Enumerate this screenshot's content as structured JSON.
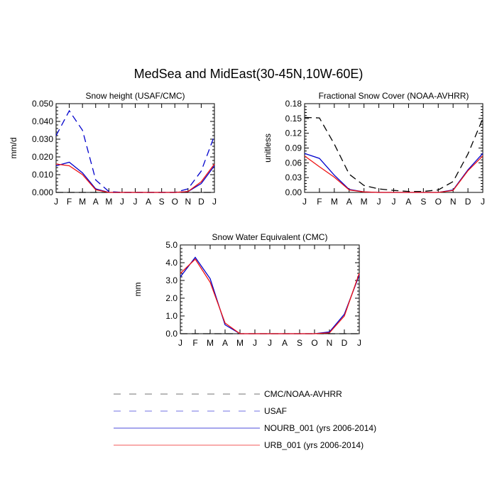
{
  "figure": {
    "title": "MedSea and MidEast(30-45N,10W-60E)"
  },
  "colors": {
    "cmc_noaa": "#000000",
    "usaf": "#0000cc",
    "nourb": "#0000cc",
    "urb": "#ee1111"
  },
  "chart_data": [
    {
      "type": "line",
      "title": "Snow height (USAF/CMC)",
      "ylabel": "mm/d",
      "xlabel": "",
      "categories": [
        "J",
        "F",
        "M",
        "A",
        "M",
        "J",
        "J",
        "A",
        "S",
        "O",
        "N",
        "D",
        "J"
      ],
      "ylim": [
        0,
        0.05
      ],
      "yticks": [
        0,
        0.01,
        0.02,
        0.03,
        0.04,
        0.05
      ],
      "ytick_labels": [
        "0.000",
        "0.010",
        "0.020",
        "0.030",
        "0.040",
        "0.050"
      ],
      "grid": false,
      "series": [
        {
          "name": "CMC/NOAA-AVHRR",
          "style": "dashed",
          "color_key": "cmc_noaa",
          "values": [
            0,
            0,
            0,
            0,
            0,
            0,
            0,
            0,
            0,
            0,
            0,
            0,
            0
          ]
        },
        {
          "name": "USAF",
          "style": "dashed",
          "color_key": "usaf",
          "values": [
            0.032,
            0.046,
            0.035,
            0.007,
            0.0005,
            0,
            0,
            0,
            0,
            0,
            0.002,
            0.012,
            0.032
          ]
        },
        {
          "name": "NOURB_001 (yrs 2006-2014)",
          "style": "solid",
          "color_key": "nourb",
          "values": [
            0.015,
            0.017,
            0.011,
            0.002,
            0,
            0,
            0,
            0,
            0,
            0,
            0.0005,
            0.005,
            0.015
          ]
        },
        {
          "name": "URB_001 (yrs 2006-2014)",
          "style": "solid",
          "color_key": "urb",
          "values": [
            0.016,
            0.015,
            0.01,
            0.0015,
            0,
            0,
            0,
            0,
            0,
            0,
            0.0005,
            0.006,
            0.016
          ]
        }
      ]
    },
    {
      "type": "line",
      "title": "Fractional Snow Cover (NOAA-AVHRR)",
      "ylabel": "unitless",
      "xlabel": "",
      "categories": [
        "J",
        "F",
        "M",
        "A",
        "M",
        "J",
        "J",
        "A",
        "S",
        "O",
        "N",
        "D",
        "J"
      ],
      "ylim": [
        0,
        0.18
      ],
      "yticks": [
        0,
        0.03,
        0.06,
        0.09,
        0.12,
        0.15,
        0.18
      ],
      "ytick_labels": [
        "0.00",
        "0.03",
        "0.06",
        "0.09",
        "0.12",
        "0.15",
        "0.18"
      ],
      "grid": false,
      "series": [
        {
          "name": "CMC/NOAA-AVHRR",
          "style": "dashed",
          "color_key": "cmc_noaa",
          "values": [
            0.152,
            0.151,
            0.098,
            0.037,
            0.014,
            0.007,
            0.004,
            0.002,
            0.002,
            0.005,
            0.022,
            0.078,
            0.15
          ]
        },
        {
          "name": "NOURB_001 (yrs 2006-2014)",
          "style": "solid",
          "color_key": "nourb",
          "values": [
            0.079,
            0.069,
            0.035,
            0.006,
            0.001,
            0,
            0,
            0,
            0,
            0,
            0.005,
            0.046,
            0.079
          ]
        },
        {
          "name": "URB_001 (yrs 2006-2014)",
          "style": "solid",
          "color_key": "urb",
          "values": [
            0.074,
            0.052,
            0.031,
            0.005,
            0.001,
            0,
            0,
            0,
            0,
            0,
            0.004,
            0.044,
            0.074
          ]
        }
      ]
    },
    {
      "type": "line",
      "title": "Snow Water Equivalent (CMC)",
      "ylabel": "mm",
      "xlabel": "",
      "categories": [
        "J",
        "F",
        "M",
        "A",
        "M",
        "J",
        "J",
        "A",
        "S",
        "O",
        "N",
        "D",
        "J"
      ],
      "ylim": [
        0,
        5
      ],
      "yticks": [
        0,
        1,
        2,
        3,
        4,
        5
      ],
      "ytick_labels": [
        "0.0",
        "1.0",
        "2.0",
        "3.0",
        "4.0",
        "5.0"
      ],
      "grid": false,
      "series": [
        {
          "name": "CMC/NOAA-AVHRR",
          "style": "dashed",
          "color_key": "cmc_noaa",
          "values": [
            0,
            0,
            0,
            0,
            0,
            0,
            0,
            0,
            0,
            0,
            0,
            0,
            0
          ]
        },
        {
          "name": "NOURB_001 (yrs 2006-2014)",
          "style": "solid",
          "color_key": "nourb",
          "values": [
            3.2,
            4.3,
            3.1,
            0.5,
            0,
            0,
            0,
            0,
            0,
            0,
            0.1,
            1.1,
            3.3
          ]
        },
        {
          "name": "URB_001 (yrs 2006-2014)",
          "style": "solid",
          "color_key": "urb",
          "values": [
            3.4,
            4.2,
            2.9,
            0.6,
            0,
            0,
            0,
            0,
            0,
            0,
            0.05,
            1.0,
            3.4
          ]
        }
      ]
    }
  ],
  "legend": [
    {
      "label": "CMC/NOAA-AVHRR",
      "style": "dashed",
      "color_key": "cmc_noaa"
    },
    {
      "label": "USAF",
      "style": "dashed",
      "color_key": "usaf"
    },
    {
      "label": "NOURB_001 (yrs 2006-2014)",
      "style": "solid",
      "color_key": "nourb"
    },
    {
      "label": "URB_001 (yrs 2006-2014)",
      "style": "solid",
      "color_key": "urb"
    }
  ]
}
